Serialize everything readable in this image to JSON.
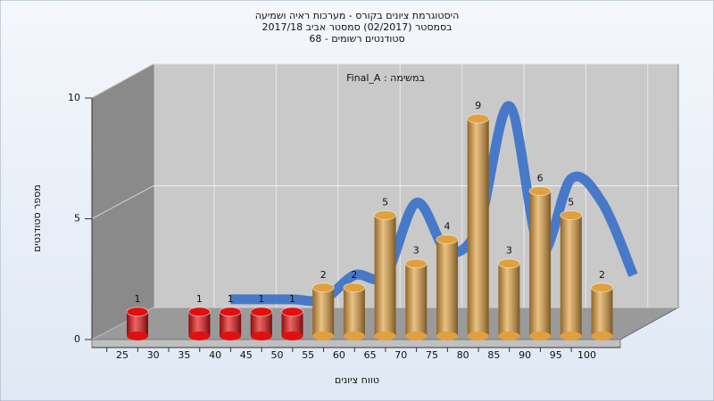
{
  "chart_data": {
    "type": "bar3d",
    "title": [
      "היסטוגרמת ציונים בקורס - מערכות ראיה ושמיעה",
      "בסמסטר  (02/2017)  סמסטר אביב 2017/18",
      "סטודנטים רשומים - 68"
    ],
    "annotation": "במשימה : Final_A",
    "x_label": "טווח ציונים",
    "y_label": "מספר סטודנטים",
    "categories": [
      "25",
      "30",
      "35",
      "40",
      "45",
      "50",
      "55",
      "60",
      "65",
      "70",
      "75",
      "80",
      "85",
      "90",
      "95",
      "100"
    ],
    "values": [
      1,
      null,
      1,
      1,
      1,
      1,
      2,
      2,
      5,
      3,
      4,
      9,
      3,
      6,
      5,
      2
    ],
    "colors": [
      "#e01010",
      null,
      "#e01010",
      "#e01010",
      "#e01010",
      "#e01010",
      "#e0a040",
      "#e0a040",
      "#e0a040",
      "#e0a040",
      "#e0a040",
      "#e0a040",
      "#e0a040",
      "#e0a040",
      "#e0a040",
      "#e0a040"
    ],
    "trend_color": "#3a70c8",
    "ylim": [
      0,
      10
    ],
    "yticks": [
      0,
      5,
      10
    ],
    "grid": true
  }
}
